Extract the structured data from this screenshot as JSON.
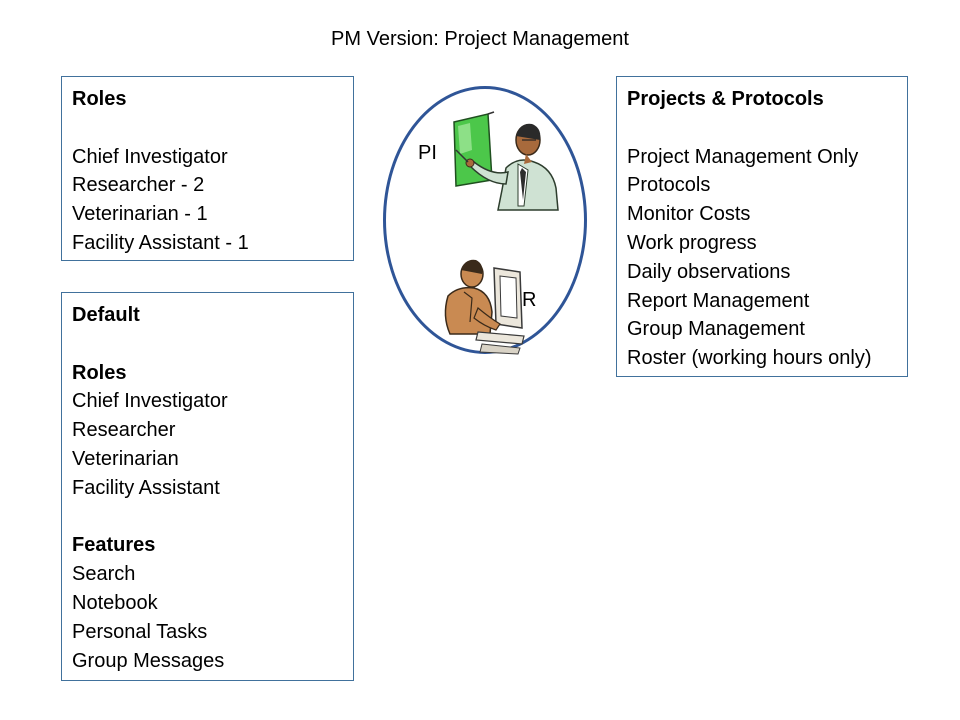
{
  "title": "PM Version: Project Management",
  "roles_box": {
    "heading": "Roles",
    "items": [
      "Chief Investigator",
      "Researcher - 2",
      "Veterinarian - 1",
      "Facility Assistant - 1"
    ]
  },
  "projects_box": {
    "heading": "Projects & Protocols",
    "items": [
      "Project Management Only",
      "Protocols",
      "Monitor Costs",
      "Work progress",
      "Daily observations",
      "Report Management",
      "Group Management",
      "Roster (working hours only)"
    ]
  },
  "default_box": {
    "heading": "Default",
    "roles_heading": "Roles",
    "roles": [
      "Chief Investigator",
      "Researcher",
      "Veterinarian",
      "Facility Assistant"
    ],
    "features_heading": "Features",
    "features": [
      "Search",
      "Notebook",
      "Personal Tasks",
      "Group Messages"
    ]
  },
  "ellipse": {
    "pi_label": "PI",
    "r_label": "R"
  },
  "colors": {
    "box_border": "#41719c",
    "ellipse_border": "#2f5597",
    "board_green": "#4cc74a"
  },
  "icons": [
    "presenter-clipart-icon",
    "computer-user-clipart-icon"
  ]
}
